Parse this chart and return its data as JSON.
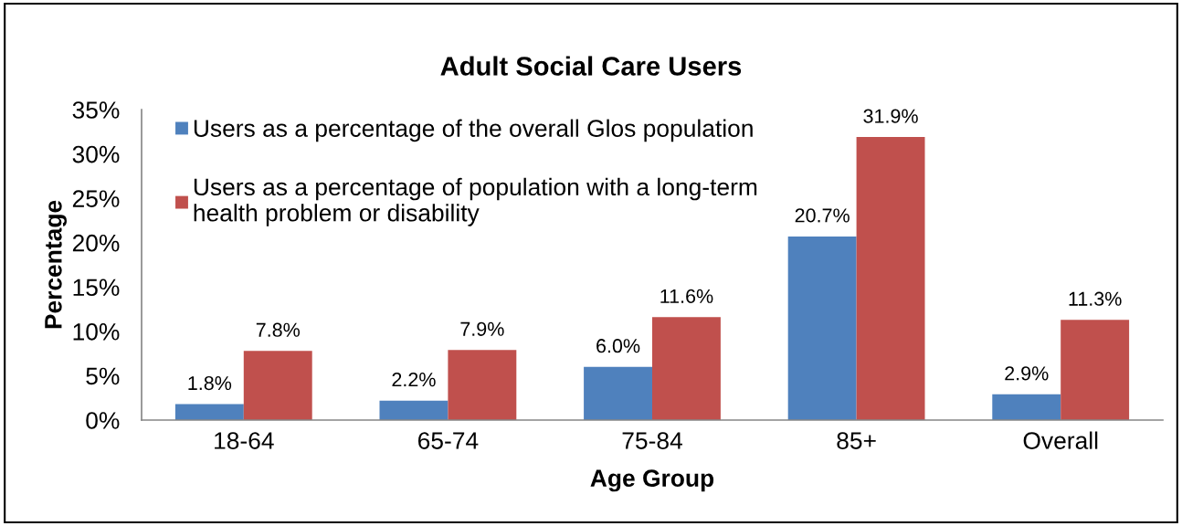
{
  "chart_data": {
    "type": "bar",
    "title": "Adult Social Care Users",
    "xlabel": "Age Group",
    "ylabel": "Percentage",
    "categories": [
      "18-64",
      "65-74",
      "75-84",
      "85+",
      "Overall"
    ],
    "series": [
      {
        "name": "Users as a percentage of the overall Glos population",
        "color": "#4f81bd",
        "values": [
          1.8,
          2.2,
          6.0,
          20.7,
          2.9
        ],
        "value_labels": [
          "1.8%",
          "2.2%",
          "6.0%",
          "20.7%",
          "2.9%"
        ]
      },
      {
        "name": "Users as a percentage of population with a long-term\nhealth problem or disability",
        "color": "#c0504d",
        "values": [
          7.8,
          7.9,
          11.6,
          31.9,
          11.3
        ],
        "value_labels": [
          "7.8%",
          "7.9%",
          "11.6%",
          "31.9%",
          "11.3%"
        ]
      }
    ],
    "ylim": [
      0,
      35
    ],
    "yticks": [
      {
        "value": 0,
        "label": "0%"
      },
      {
        "value": 5,
        "label": "5%"
      },
      {
        "value": 10,
        "label": "10%"
      },
      {
        "value": 15,
        "label": "15%"
      },
      {
        "value": 20,
        "label": "20%"
      },
      {
        "value": 25,
        "label": "25%"
      },
      {
        "value": 30,
        "label": "30%"
      },
      {
        "value": 35,
        "label": "35%"
      }
    ],
    "grid": false,
    "legend": "top left"
  }
}
